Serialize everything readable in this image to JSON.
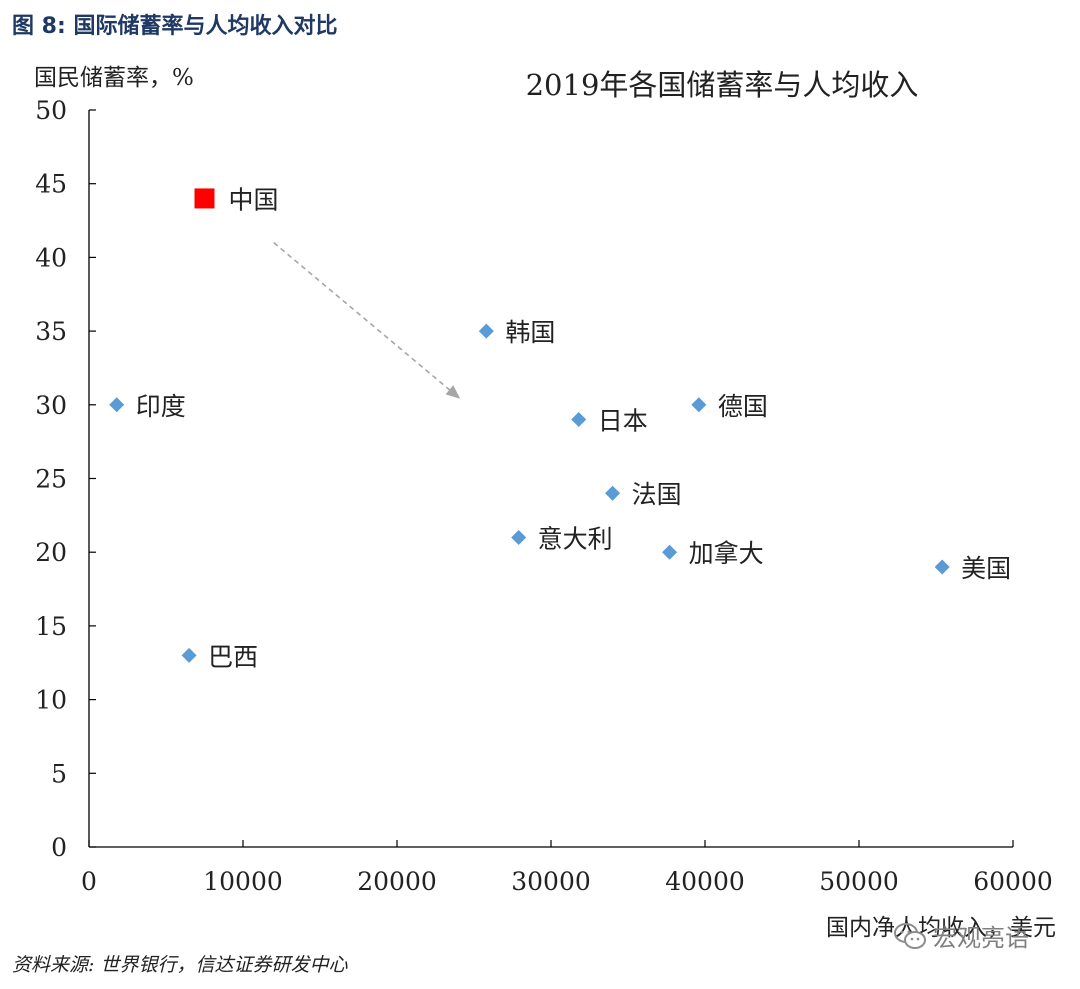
{
  "header": {
    "figure_no": "图 8:",
    "title": "国际储蓄率与人均收入对比"
  },
  "source": "资料来源: 世界银行，信达证券研发中心",
  "watermark": "宏观亮语",
  "colors": {
    "point": "#5b9bd5",
    "highlight": "#ff0000",
    "axis": "#000000",
    "arrow": "#a6a6a6",
    "header": "#1f3864"
  },
  "chart_data": {
    "type": "scatter",
    "title": "2019年各国储蓄率与人均收入",
    "xlabel": "国内净人均收入，美元",
    "ylabel": "国民储蓄率，%",
    "xlim": [
      0,
      60000
    ],
    "ylim": [
      0,
      50
    ],
    "x_ticks": [
      0,
      10000,
      20000,
      30000,
      40000,
      50000,
      60000
    ],
    "y_ticks": [
      0,
      5,
      10,
      15,
      20,
      25,
      30,
      35,
      40,
      45,
      50
    ],
    "grid": false,
    "legend": "none",
    "points": [
      {
        "label": "中国",
        "x": 7500,
        "y": 44,
        "marker": "square",
        "highlight": true
      },
      {
        "label": "印度",
        "x": 1800,
        "y": 30,
        "marker": "diamond"
      },
      {
        "label": "巴西",
        "x": 6500,
        "y": 13,
        "marker": "diamond"
      },
      {
        "label": "韩国",
        "x": 25800,
        "y": 35,
        "marker": "diamond"
      },
      {
        "label": "日本",
        "x": 31800,
        "y": 29,
        "marker": "diamond"
      },
      {
        "label": "德国",
        "x": 39600,
        "y": 30,
        "marker": "diamond"
      },
      {
        "label": "法国",
        "x": 34000,
        "y": 24,
        "marker": "diamond"
      },
      {
        "label": "意大利",
        "x": 27900,
        "y": 21,
        "marker": "diamond"
      },
      {
        "label": "加拿大",
        "x": 37700,
        "y": 20,
        "marker": "diamond"
      },
      {
        "label": "美国",
        "x": 55400,
        "y": 19,
        "marker": "diamond"
      }
    ],
    "annotations": [
      {
        "type": "arrow",
        "style": "dashed",
        "from": {
          "x": 12000,
          "y": 41
        },
        "to": {
          "x": 24000,
          "y": 30.5
        }
      }
    ]
  }
}
